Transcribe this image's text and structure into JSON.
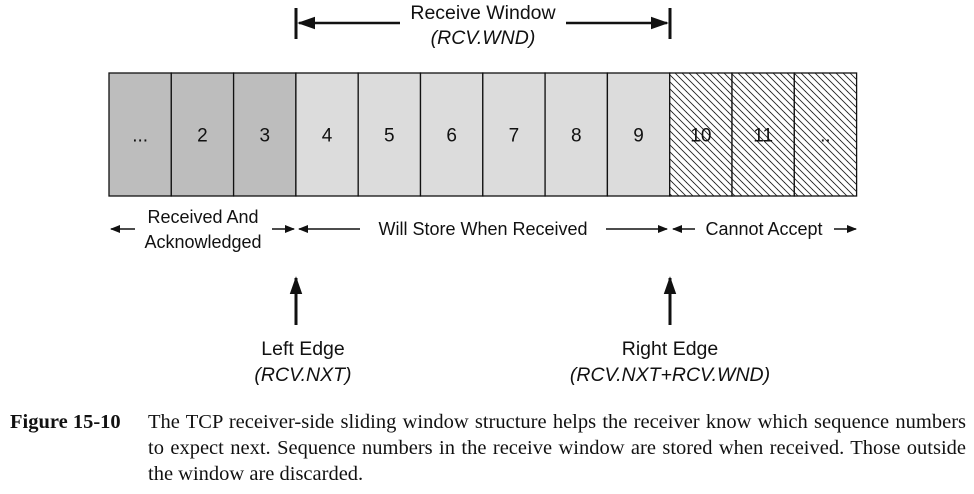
{
  "receive_window": {
    "title": "Receive Window",
    "subtitle": "(RCV.WND)"
  },
  "cells": [
    {
      "label": "...",
      "state": "acknowledged"
    },
    {
      "label": "2",
      "state": "acknowledged"
    },
    {
      "label": "3",
      "state": "acknowledged"
    },
    {
      "label": "4",
      "state": "window"
    },
    {
      "label": "5",
      "state": "window"
    },
    {
      "label": "6",
      "state": "window"
    },
    {
      "label": "7",
      "state": "window"
    },
    {
      "label": "8",
      "state": "window"
    },
    {
      "label": "9",
      "state": "window"
    },
    {
      "label": "10",
      "state": "cannot-accept"
    },
    {
      "label": "11",
      "state": "cannot-accept"
    },
    {
      "label": "..",
      "state": "cannot-accept"
    }
  ],
  "regions": {
    "acknowledged_line1": "Received And",
    "acknowledged_line2": "Acknowledged",
    "will_store": "Will Store When Received",
    "cannot_accept": "Cannot Accept"
  },
  "edges": {
    "left_title": "Left Edge",
    "left_sub": "(RCV.NXT)",
    "right_title": "Right Edge",
    "right_sub": "(RCV.NXT+RCV.WND)"
  },
  "colors": {
    "acknowledged": "#bdbdbd",
    "window": "#dcdcdc",
    "cannot_accept": "#ffffff",
    "stroke": "#111111"
  },
  "caption": {
    "label": "Figure 15-10",
    "text": "The TCP receiver-side sliding window structure helps the receiver know which sequence numbers to expect next. Sequence numbers in the receive window are stored when received. Those outside the window are discarded."
  }
}
